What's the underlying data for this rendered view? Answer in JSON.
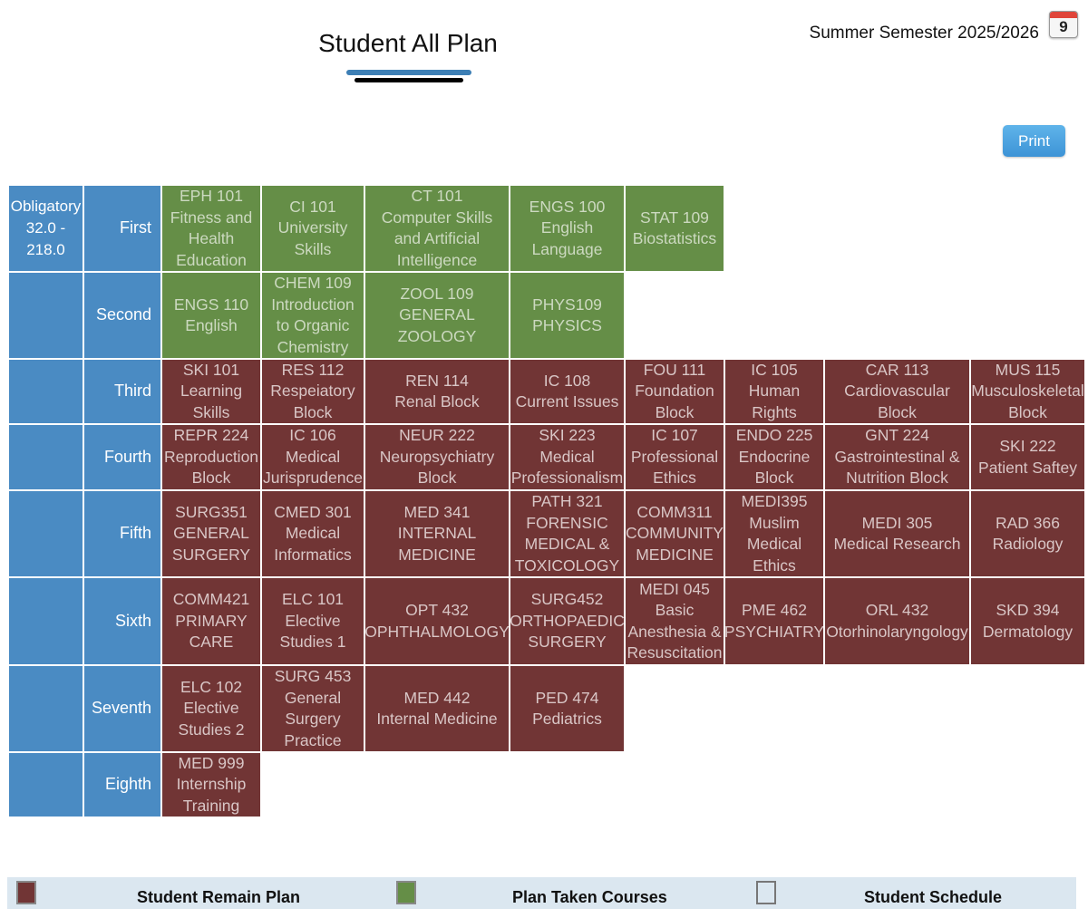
{
  "header": {
    "title": "Student All Plan",
    "semester": "Summer Semester 2025/2026",
    "calendar_day": "9",
    "print_label": "Print"
  },
  "plan": {
    "obligatory_label": "Obligatory\n32.0 -\n218.0",
    "years": [
      "First",
      "Second",
      "Third",
      "Fourth",
      "Fifth",
      "Sixth",
      "Seventh",
      "Eighth"
    ],
    "courses": [
      {
        "text": "EPH 101\nFitness and\nHealth\nEducation",
        "status": "taken"
      },
      {
        "text": "CI 101\nUniversity\nSkills",
        "status": "taken"
      },
      {
        "text": "CT 101\nComputer Skills\nand Artificial\nIntelligence",
        "status": "taken"
      },
      {
        "text": "ENGS 100\nEnglish\nLanguage",
        "status": "taken"
      },
      {
        "text": "STAT 109\nBiostatistics",
        "status": "taken"
      },
      {
        "text": "ENGS 110\nEnglish",
        "status": "taken"
      },
      {
        "text": "CHEM 109\nIntroduction\nto Organic\nChemistry",
        "status": "taken"
      },
      {
        "text": "ZOOL 109\nGENERAL\nZOOLOGY",
        "status": "taken"
      },
      {
        "text": "PHYS109\nPHYSICS",
        "status": "taken"
      },
      {
        "text": "SKI 101\nLearning\nSkills",
        "status": "remain"
      },
      {
        "text": "RES 112\nRespeiatory\nBlock",
        "status": "remain"
      },
      {
        "text": "REN 114\nRenal Block",
        "status": "remain"
      },
      {
        "text": "IC 108\nCurrent Issues",
        "status": "remain"
      },
      {
        "text": "FOU 111\nFoundation\nBlock",
        "status": "remain"
      },
      {
        "text": "IC 105\nHuman\nRights",
        "status": "remain"
      },
      {
        "text": "CAR 113\nCardiovascular\nBlock",
        "status": "remain"
      },
      {
        "text": "MUS 115\nMusculoskeletal\nBlock",
        "status": "remain"
      },
      {
        "text": "REPR 224\nReproduction\nBlock",
        "status": "remain"
      },
      {
        "text": "IC 106\nMedical\nJurisprudence",
        "status": "remain"
      },
      {
        "text": "NEUR 222\nNeuropsychiatry\nBlock",
        "status": "remain"
      },
      {
        "text": "SKI 223\nMedical\nProfessionalism",
        "status": "remain"
      },
      {
        "text": "IC 107\nProfessional\nEthics",
        "status": "remain"
      },
      {
        "text": "ENDO 225\nEndocrine\nBlock",
        "status": "remain"
      },
      {
        "text": "GNT 224\nGastrointestinal &\nNutrition Block",
        "status": "remain"
      },
      {
        "text": "SKI 222\nPatient Saftey",
        "status": "remain"
      },
      {
        "text": "SURG351\nGENERAL\nSURGERY",
        "status": "remain"
      },
      {
        "text": "CMED 301\nMedical\nInformatics",
        "status": "remain"
      },
      {
        "text": "MED 341\nINTERNAL\nMEDICINE",
        "status": "remain"
      },
      {
        "text": "PATH 321\nFORENSIC\nMEDICAL &\nTOXICOLOGY",
        "status": "remain"
      },
      {
        "text": "COMM311\nCOMMUNITY\nMEDICINE",
        "status": "remain"
      },
      {
        "text": "MEDI395\nMuslim\nMedical\nEthics",
        "status": "remain"
      },
      {
        "text": "MEDI 305\nMedical Research",
        "status": "remain"
      },
      {
        "text": "RAD 366\nRadiology",
        "status": "remain"
      },
      {
        "text": "COMM421\nPRIMARY\nCARE",
        "status": "remain"
      },
      {
        "text": "ELC 101\nElective\nStudies 1",
        "status": "remain"
      },
      {
        "text": "OPT 432\nOPHTHALMOLOGY",
        "status": "remain"
      },
      {
        "text": "SURG452\nORTHOPAEDIC\nSURGERY",
        "status": "remain"
      },
      {
        "text": "MEDI 045\nBasic\nAnesthesia &\nResuscitation",
        "status": "remain"
      },
      {
        "text": "PME 462\nPSYCHIATRY",
        "status": "remain"
      },
      {
        "text": "ORL 432\nOtorhinolaryngology",
        "status": "remain"
      },
      {
        "text": "SKD 394\nDermatology",
        "status": "remain"
      },
      {
        "text": "ELC 102\nElective\nStudies 2",
        "status": "remain"
      },
      {
        "text": "SURG 453\nGeneral\nSurgery\nPractice",
        "status": "remain"
      },
      {
        "text": "MED 442\nInternal Medicine",
        "status": "remain"
      },
      {
        "text": "PED 474\nPediatrics",
        "status": "remain"
      },
      {
        "text": "MED 999\nInternship\nTraining",
        "status": "remain"
      }
    ]
  },
  "legend": {
    "remain": "Student Remain Plan",
    "taken": "Plan Taken Courses",
    "schedule": "Student Schedule"
  },
  "colors": {
    "taken": "#658e47",
    "remain": "#713535",
    "header": "#4a8bc3"
  }
}
